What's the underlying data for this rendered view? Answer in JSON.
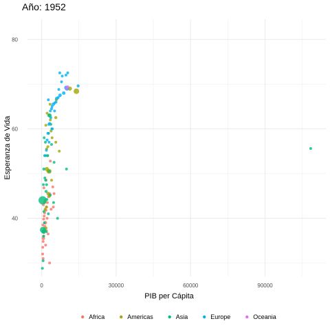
{
  "chart_data": {
    "type": "scatter",
    "title": "Año: 1952",
    "xlabel": "PIB per Cápita",
    "ylabel": "Esperanza de Vida",
    "xlim": [
      -5700,
      114500
    ],
    "ylim": [
      27,
      84.5
    ],
    "x_ticks": [
      0,
      30000,
      60000,
      90000
    ],
    "x_tick_labels": [
      "0",
      "30000",
      "60000",
      "90000"
    ],
    "y_ticks": [
      40,
      60,
      80
    ],
    "y_tick_labels": [
      "40",
      "60",
      "80"
    ],
    "grid": true,
    "legend_position": "bottom",
    "legend": [
      {
        "name": "Africa",
        "color": "#F8766D"
      },
      {
        "name": "Americas",
        "color": "#A3A500"
      },
      {
        "name": "Asia",
        "color": "#00BF7D"
      },
      {
        "name": "Europe",
        "color": "#00B0F6"
      },
      {
        "name": "Oceania",
        "color": "#E76BF3"
      }
    ],
    "series": [
      {
        "name": "Africa",
        "color": "#F8766D",
        "points": [
          {
            "x": 450,
            "y": 33.5,
            "s": 2.0
          },
          {
            "x": 600,
            "y": 34.8,
            "s": 2.0
          },
          {
            "x": 700,
            "y": 35.5,
            "s": 2.5
          },
          {
            "x": 750,
            "y": 36.0,
            "s": 2.0
          },
          {
            "x": 900,
            "y": 36.8,
            "s": 2.0
          },
          {
            "x": 1100,
            "y": 37.5,
            "s": 2.2
          },
          {
            "x": 1300,
            "y": 38.2,
            "s": 2.0
          },
          {
            "x": 1500,
            "y": 39.0,
            "s": 2.5
          },
          {
            "x": 800,
            "y": 39.8,
            "s": 2.0
          },
          {
            "x": 1000,
            "y": 40.5,
            "s": 2.0
          },
          {
            "x": 1200,
            "y": 41.2,
            "s": 2.0
          },
          {
            "x": 1700,
            "y": 41.8,
            "s": 2.2
          },
          {
            "x": 2000,
            "y": 42.5,
            "s": 2.0
          },
          {
            "x": 2300,
            "y": 43.5,
            "s": 2.0
          },
          {
            "x": 2800,
            "y": 44.8,
            "s": 2.0
          },
          {
            "x": 3200,
            "y": 45.5,
            "s": 2.0
          },
          {
            "x": 900,
            "y": 46.8,
            "s": 2.0
          },
          {
            "x": 1800,
            "y": 48.5,
            "s": 2.0
          },
          {
            "x": 2500,
            "y": 50.5,
            "s": 2.0
          },
          {
            "x": 3500,
            "y": 52.8,
            "s": 2.0
          },
          {
            "x": 4700,
            "y": 42.5,
            "s": 2.0
          },
          {
            "x": 3200,
            "y": 30.0,
            "s": 2.0
          },
          {
            "x": 400,
            "y": 32.0,
            "s": 2.0
          },
          {
            "x": 600,
            "y": 31.0,
            "s": 2.0
          },
          {
            "x": 1600,
            "y": 34.0,
            "s": 2.0
          },
          {
            "x": 2600,
            "y": 36.5,
            "s": 2.0
          },
          {
            "x": 2200,
            "y": 40.0,
            "s": 2.0
          },
          {
            "x": 3800,
            "y": 42.0,
            "s": 2.0
          },
          {
            "x": 4500,
            "y": 47.0,
            "s": 2.0
          },
          {
            "x": 1400,
            "y": 44.0,
            "s": 2.2
          },
          {
            "x": 500,
            "y": 38.5,
            "s": 2.0
          },
          {
            "x": 1900,
            "y": 37.2,
            "s": 2.0
          },
          {
            "x": 5000,
            "y": 45.5,
            "s": 2.0
          },
          {
            "x": 700,
            "y": 43.0,
            "s": 2.0
          }
        ]
      },
      {
        "name": "Americas",
        "color": "#A3A500",
        "points": [
          {
            "x": 13990,
            "y": 68.4,
            "s": 4.0
          },
          {
            "x": 11370,
            "y": 69.0,
            "s": 3.0
          },
          {
            "x": 5900,
            "y": 66.5,
            "s": 2.2
          },
          {
            "x": 5700,
            "y": 62.5,
            "s": 2.2
          },
          {
            "x": 7100,
            "y": 55.0,
            "s": 2.0
          },
          {
            "x": 5700,
            "y": 57.0,
            "s": 2.0
          },
          {
            "x": 3000,
            "y": 63.0,
            "s": 2.5
          },
          {
            "x": 2200,
            "y": 63.5,
            "s": 2.0
          },
          {
            "x": 3500,
            "y": 62.0,
            "s": 2.0
          },
          {
            "x": 2400,
            "y": 54.0,
            "s": 2.0
          },
          {
            "x": 2100,
            "y": 51.0,
            "s": 3.0
          },
          {
            "x": 3000,
            "y": 50.5,
            "s": 3.5
          },
          {
            "x": 2600,
            "y": 45.5,
            "s": 2.5
          },
          {
            "x": 3100,
            "y": 45.0,
            "s": 2.5
          },
          {
            "x": 1400,
            "y": 42.0,
            "s": 2.0
          },
          {
            "x": 1900,
            "y": 42.5,
            "s": 2.0
          },
          {
            "x": 4000,
            "y": 48.5,
            "s": 2.0
          },
          {
            "x": 2500,
            "y": 56.0,
            "s": 2.0
          },
          {
            "x": 3800,
            "y": 59.5,
            "s": 2.0
          },
          {
            "x": 1800,
            "y": 37.8,
            "s": 2.0
          },
          {
            "x": 4200,
            "y": 58.0,
            "s": 2.0
          },
          {
            "x": 1700,
            "y": 60.8,
            "s": 2.0
          },
          {
            "x": 3400,
            "y": 65.5,
            "s": 2.0
          },
          {
            "x": 2000,
            "y": 55.5,
            "s": 2.0
          },
          {
            "x": 1200,
            "y": 43.5,
            "s": 2.0
          }
        ]
      },
      {
        "name": "Asia",
        "color": "#00BF7D",
        "points": [
          {
            "x": 108382,
            "y": 55.6,
            "s": 2.0
          },
          {
            "x": 400,
            "y": 44.0,
            "s": 6.0
          },
          {
            "x": 550,
            "y": 37.4,
            "s": 4.5
          },
          {
            "x": 750,
            "y": 37.0,
            "s": 3.0
          },
          {
            "x": 3200,
            "y": 63.0,
            "s": 3.0
          },
          {
            "x": 4100,
            "y": 60.0,
            "s": 2.0
          },
          {
            "x": 6400,
            "y": 40.0,
            "s": 2.0
          },
          {
            "x": 10000,
            "y": 51.0,
            "s": 2.0
          },
          {
            "x": 4800,
            "y": 43.5,
            "s": 2.0
          },
          {
            "x": 1800,
            "y": 46.0,
            "s": 2.2
          },
          {
            "x": 1300,
            "y": 49.0,
            "s": 2.0
          },
          {
            "x": 900,
            "y": 51.0,
            "s": 2.2
          },
          {
            "x": 2000,
            "y": 47.5,
            "s": 2.0
          },
          {
            "x": 3100,
            "y": 50.5,
            "s": 2.0
          },
          {
            "x": 1000,
            "y": 58.0,
            "s": 2.0
          },
          {
            "x": 1500,
            "y": 57.0,
            "s": 2.0
          },
          {
            "x": 2400,
            "y": 54.0,
            "s": 2.0
          },
          {
            "x": 4000,
            "y": 56.5,
            "s": 2.0
          },
          {
            "x": 300,
            "y": 28.8,
            "s": 2.0
          },
          {
            "x": 600,
            "y": 30.5,
            "s": 2.0
          },
          {
            "x": 800,
            "y": 36.0,
            "s": 2.0
          },
          {
            "x": 1100,
            "y": 39.0,
            "s": 2.0
          },
          {
            "x": 2700,
            "y": 41.0,
            "s": 2.0
          },
          {
            "x": 1600,
            "y": 48.5,
            "s": 2.0
          },
          {
            "x": 5000,
            "y": 52.5,
            "s": 2.0
          },
          {
            "x": 3500,
            "y": 45.2,
            "s": 2.0
          },
          {
            "x": 700,
            "y": 47.5,
            "s": 2.0
          },
          {
            "x": 2100,
            "y": 44.2,
            "s": 2.0
          },
          {
            "x": 900,
            "y": 41.5,
            "s": 2.0
          },
          {
            "x": 1200,
            "y": 54.0,
            "s": 2.0
          },
          {
            "x": 2800,
            "y": 59.0,
            "s": 2.0
          },
          {
            "x": 1900,
            "y": 37.0,
            "s": 2.0
          },
          {
            "x": 3700,
            "y": 61.0,
            "s": 2.0
          }
        ]
      },
      {
        "name": "Europe",
        "color": "#00B0F6",
        "points": [
          {
            "x": 14700,
            "y": 69.6,
            "s": 2.2
          },
          {
            "x": 10500,
            "y": 72.5,
            "s": 2.0
          },
          {
            "x": 9800,
            "y": 72.0,
            "s": 2.0
          },
          {
            "x": 7300,
            "y": 72.5,
            "s": 2.0
          },
          {
            "x": 8300,
            "y": 71.8,
            "s": 2.0
          },
          {
            "x": 9900,
            "y": 69.2,
            "s": 3.0
          },
          {
            "x": 10200,
            "y": 69.0,
            "s": 3.0
          },
          {
            "x": 8900,
            "y": 68.0,
            "s": 2.5
          },
          {
            "x": 7400,
            "y": 67.5,
            "s": 2.5
          },
          {
            "x": 6700,
            "y": 67.0,
            "s": 2.0
          },
          {
            "x": 6100,
            "y": 66.8,
            "s": 2.5
          },
          {
            "x": 5800,
            "y": 66.0,
            "s": 2.0
          },
          {
            "x": 5300,
            "y": 65.8,
            "s": 2.0
          },
          {
            "x": 4700,
            "y": 65.5,
            "s": 2.5
          },
          {
            "x": 4200,
            "y": 65.0,
            "s": 2.0
          },
          {
            "x": 4000,
            "y": 64.5,
            "s": 2.0
          },
          {
            "x": 3500,
            "y": 64.0,
            "s": 2.0
          },
          {
            "x": 3200,
            "y": 61.2,
            "s": 2.0
          },
          {
            "x": 2900,
            "y": 61.0,
            "s": 2.0
          },
          {
            "x": 4300,
            "y": 60.0,
            "s": 2.0
          },
          {
            "x": 2500,
            "y": 59.0,
            "s": 2.0
          },
          {
            "x": 2200,
            "y": 57.5,
            "s": 2.0
          },
          {
            "x": 1900,
            "y": 55.2,
            "s": 2.0
          },
          {
            "x": 1600,
            "y": 54.0,
            "s": 2.0
          },
          {
            "x": 3000,
            "y": 57.0,
            "s": 2.0
          },
          {
            "x": 3700,
            "y": 62.5,
            "s": 2.0
          },
          {
            "x": 5200,
            "y": 64.0,
            "s": 2.0
          },
          {
            "x": 6900,
            "y": 68.8,
            "s": 2.0
          },
          {
            "x": 8000,
            "y": 70.5,
            "s": 2.0
          },
          {
            "x": 2700,
            "y": 66.5,
            "s": 2.0
          }
        ]
      },
      {
        "name": "Oceania",
        "color": "#E76BF3",
        "points": [
          {
            "x": 10040,
            "y": 69.1,
            "s": 2.5
          },
          {
            "x": 10560,
            "y": 69.4,
            "s": 2.0
          }
        ]
      }
    ]
  }
}
